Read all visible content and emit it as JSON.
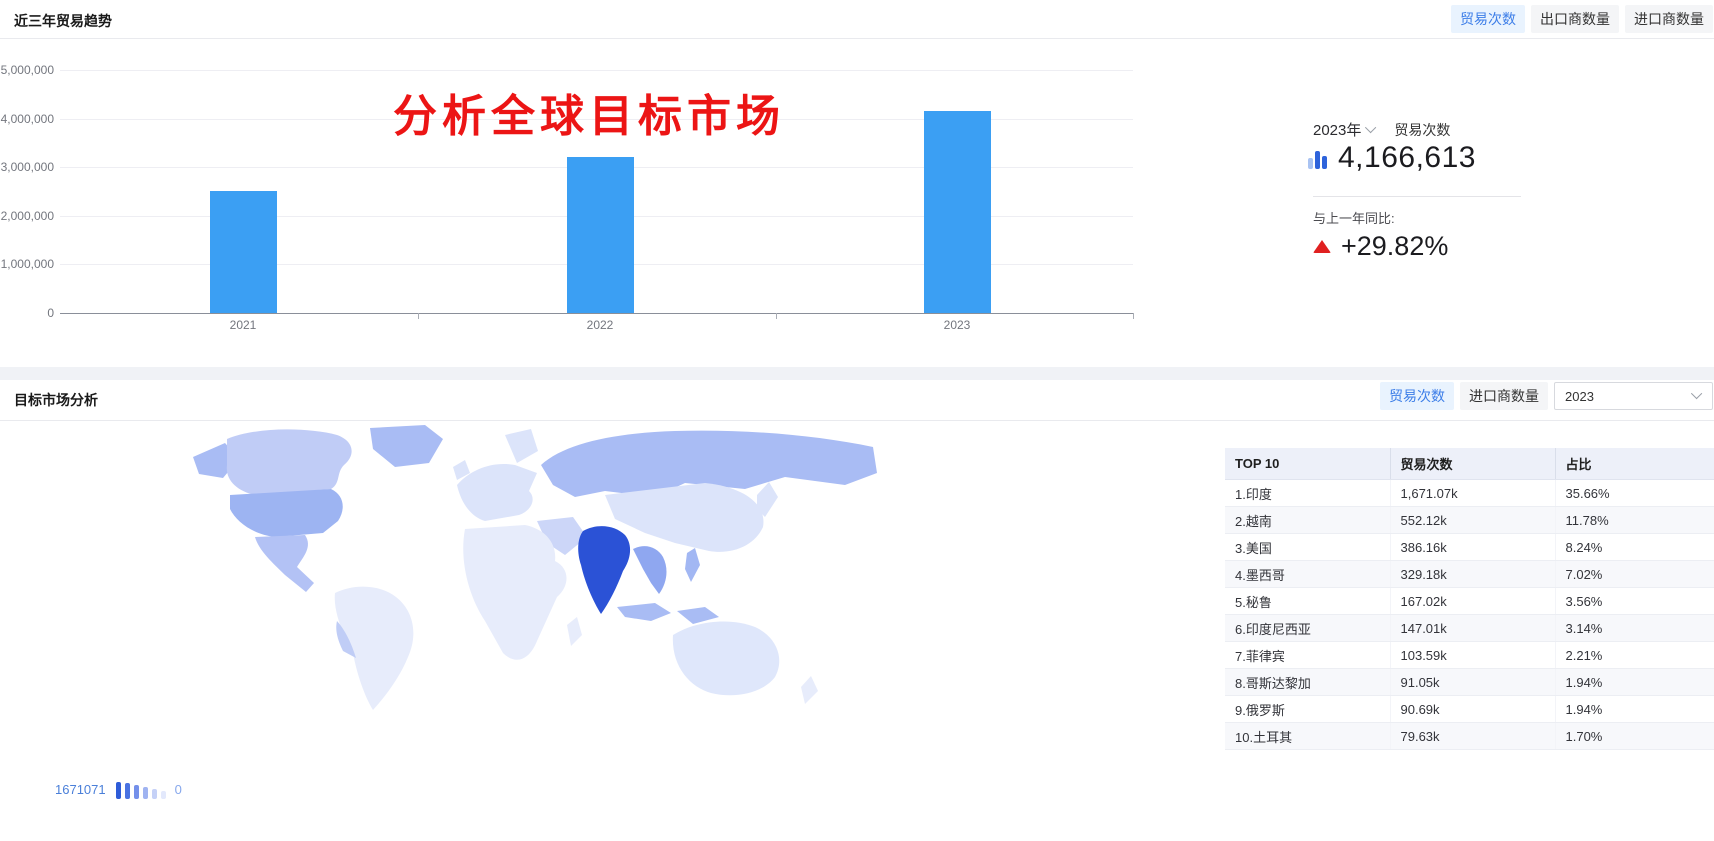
{
  "theme": {
    "accent_blue": "#3d7ee8",
    "active_tab_bg": "#e9f3fe",
    "inactive_tab_bg": "#f4f5f7",
    "bar_blue": "#3b9ff3",
    "annotation_red": "#ec1515",
    "rise_red": "#e02020",
    "legend_blue": "#4a7fd9",
    "map_base": "#e7ecfb",
    "map_low": "#dce4fa",
    "map_mid": "#a9bcf4",
    "map_high": "#8fa7f0",
    "map_us": "#9db4f2",
    "map_top": "#2b52d6"
  },
  "trend": {
    "title": "近三年贸易趋势",
    "tabs": [
      {
        "label": "贸易次数"
      },
      {
        "label": "出口商数量"
      },
      {
        "label": "进口商数量"
      }
    ],
    "annotation": "分析全球目标市场"
  },
  "stats": {
    "year": "2023年",
    "metric": "贸易次数",
    "value": "4,166,613",
    "yoy_label": "与上一年同比:",
    "yoy_value": "+29.82%",
    "chart_icon": "bar-chart-icon",
    "trend_icon": "triangle-up-icon"
  },
  "market": {
    "title": "目标市场分析",
    "tabs": [
      {
        "label": "贸易次数"
      },
      {
        "label": "进口商数量"
      }
    ],
    "year_select": "2023",
    "legend_max": "1671071",
    "legend_min": "0"
  },
  "market_table": {
    "headers": [
      "TOP 10",
      "贸易次数",
      "占比"
    ],
    "rows": [
      {
        "name": "1.印度",
        "value": "1,671.07k",
        "share": "35.66%"
      },
      {
        "name": "2.越南",
        "value": "552.12k",
        "share": "11.78%"
      },
      {
        "name": "3.美国",
        "value": "386.16k",
        "share": "8.24%"
      },
      {
        "name": "4.墨西哥",
        "value": "329.18k",
        "share": "7.02%"
      },
      {
        "name": "5.秘鲁",
        "value": "167.02k",
        "share": "3.56%"
      },
      {
        "name": "6.印度尼西亚",
        "value": "147.01k",
        "share": "3.14%"
      },
      {
        "name": "7.菲律宾",
        "value": "103.59k",
        "share": "2.21%"
      },
      {
        "name": "8.哥斯达黎加",
        "value": "91.05k",
        "share": "1.94%"
      },
      {
        "name": "9.俄罗斯",
        "value": "90.69k",
        "share": "1.94%"
      },
      {
        "name": "10.土耳其",
        "value": "79.63k",
        "share": "1.70%"
      }
    ]
  },
  "chart_data": [
    {
      "type": "bar",
      "title": "近三年贸易趋势",
      "categories": [
        "2021",
        "2022",
        "2023"
      ],
      "values": [
        2520000,
        3209000,
        4166613
      ],
      "yticks": [
        "5,000,000",
        "4,000,000",
        "3,000,000",
        "2,000,000",
        "1,000,000",
        "0"
      ],
      "ylim": [
        0,
        5000000
      ],
      "grid": true,
      "bar_color": "#3b9ff3",
      "legend_position": "none"
    },
    {
      "type": "heatmap",
      "subtype": "world-choropleth",
      "title": "目标市场分析",
      "metric": "贸易次数",
      "year": "2023",
      "range": [
        0,
        1671071
      ],
      "regions": [
        {
          "name": "印度",
          "value": 1671070
        },
        {
          "name": "越南",
          "value": 552120
        },
        {
          "name": "美国",
          "value": 386160
        },
        {
          "name": "墨西哥",
          "value": 329180
        },
        {
          "name": "秘鲁",
          "value": 167020
        },
        {
          "name": "印度尼西亚",
          "value": 147010
        },
        {
          "name": "菲律宾",
          "value": 103590
        },
        {
          "name": "哥斯达黎加",
          "value": 91050
        },
        {
          "name": "俄罗斯",
          "value": 90690
        },
        {
          "name": "土耳其",
          "value": 79630
        }
      ]
    }
  ]
}
